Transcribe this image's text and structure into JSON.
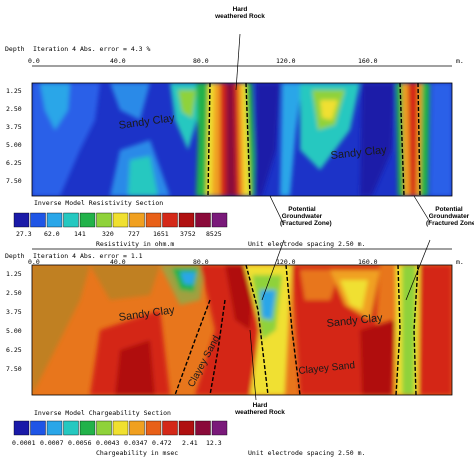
{
  "upper": {
    "header": "Iteration 4 Abs. error = 4.3 %",
    "depth_label": "Depth",
    "x_ticks": [
      "0.0",
      "40.0",
      "80.0",
      "120.0",
      "160.0"
    ],
    "x_unit": "m.",
    "depths": [
      "1.25",
      "2.50",
      "3.75",
      "5.00",
      "6.25",
      "7.50"
    ],
    "legend_title": "Inverse Model Resistivity Section",
    "legend_values": [
      "27.3",
      "62.0",
      "141",
      "320",
      "727",
      "1651",
      "3752",
      "8525"
    ],
    "legend_units": "Resistivity in ohm.m",
    "spacing": "Unit electrode spacing 2.50 m.",
    "zones": [
      "Sandy Clay",
      "Sandy Clay"
    ]
  },
  "lower": {
    "header": "Iteration 4 Abs. error = 1.1",
    "depth_label": "Depth",
    "x_ticks": [
      "0.0",
      "40.0",
      "80.0",
      "120.0",
      "160.0"
    ],
    "x_unit": "m.",
    "depths": [
      "1.25",
      "2.50",
      "3.75",
      "5.00",
      "6.25",
      "7.50"
    ],
    "legend_title": "Inverse Model Chargeability Section",
    "legend_values": [
      "0.0001",
      "0.0007",
      "0.0056",
      "0.0043",
      "0.0347",
      "0.472",
      "2.41",
      "12.3"
    ],
    "legend_units": "Chargeability in msec",
    "spacing": "Unit electrode spacing 2.50 m.",
    "zones": [
      "Sandy Clay",
      "Sandy Clay",
      "Clayey Sand",
      "Clayey Sand"
    ]
  },
  "annotations": {
    "hard_rock_top": [
      "Hard",
      "weathered Rock"
    ],
    "hard_rock_bottom": [
      "Hard",
      "weathered Rock"
    ],
    "groundwater_mid": [
      "Potential",
      "Groundwater",
      "(Fractured Zone)"
    ],
    "groundwater_right": [
      "Potential",
      "Groundwater",
      "(Fractured Zone)"
    ]
  },
  "palette": [
    "#1a1aa8",
    "#1f55e6",
    "#2aa6e8",
    "#25c8c0",
    "#22b24a",
    "#8fd23a",
    "#f0e030",
    "#f0a020",
    "#e86018",
    "#d42818",
    "#b01010",
    "#8a0a3a",
    "#7a1a7a"
  ],
  "resistivity_bg": "#1c33c8",
  "chargeability_bg": "#e8761c"
}
